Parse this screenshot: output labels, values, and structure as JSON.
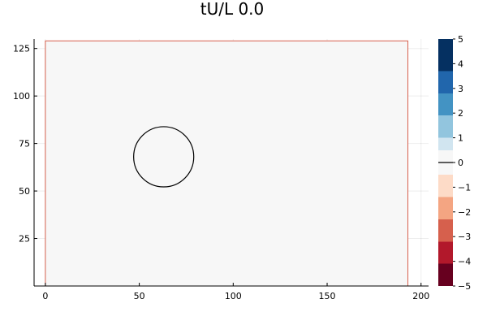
{
  "chart_data": {
    "type": "heatmap",
    "title": "tU/L 0.0",
    "xlabel": "",
    "ylabel": "",
    "xlim": [
      -6,
      204
    ],
    "ylim": [
      0,
      130
    ],
    "x_ticks": [
      0,
      50,
      100,
      150,
      200
    ],
    "y_ticks": [
      25,
      50,
      75,
      100,
      125
    ],
    "field": {
      "x_range": [
        0,
        193
      ],
      "y_range": [
        0,
        129
      ],
      "value": 0.0,
      "fill_color": "#f7f7f7",
      "border_color": "#d6604d"
    },
    "circle": {
      "center": [
        63,
        68
      ],
      "radius": 16
    },
    "colorbar": {
      "range": [
        -5,
        5
      ],
      "levels": [
        -5,
        -4.375,
        -3.75,
        -3.125,
        -2.5,
        -1.875,
        -1.25,
        -0.625,
        0.625,
        1.25,
        1.875,
        2.5,
        3.125,
        3.75,
        4.375,
        5
      ],
      "colors": [
        "#67001f",
        "#b2182b",
        "#d6604d",
        "#f4a582",
        "#fddbc7",
        "#f7f7f7",
        "#d1e5f0",
        "#92c5de",
        "#4393c3",
        "#2166ac",
        "#053061"
      ],
      "tick_values": [
        -5,
        -4,
        -3,
        -2,
        -1,
        0,
        1,
        2,
        3,
        4,
        5
      ],
      "tick_labels": [
        "−5",
        "−4",
        "−3",
        "−2",
        "−1",
        "0",
        "1",
        "2",
        "3",
        "4",
        "5"
      ],
      "zero_line": true
    },
    "grid": true
  }
}
